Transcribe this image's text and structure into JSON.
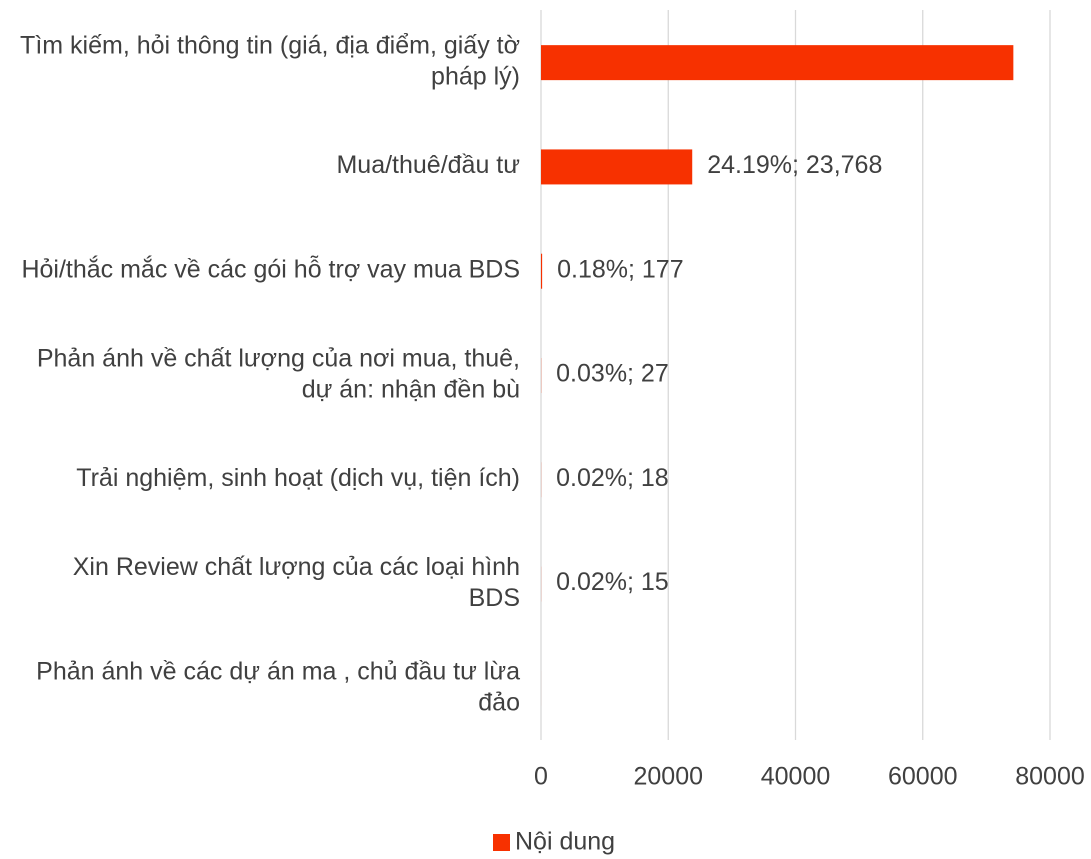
{
  "chart_data": {
    "type": "bar",
    "orientation": "horizontal",
    "categories": [
      "Tìm kiếm, hỏi thông tin (giá, địa điểm, giấy tờ pháp lý)",
      "Mua/thuê/đầu tư",
      "Hỏi/thắc mắc về các gói hỗ trợ vay mua BDS",
      "Phản ánh về chất lượng của nơi mua, thuê, dự án: nhận đền bù",
      "Trải nghiệm, sinh hoạt (dịch vụ, tiện ích)",
      "Xin Review chất lượng của các loại hình BDS",
      "Phản ánh về các dự án ma , chủ đầu tư lừa đảo"
    ],
    "series": [
      {
        "name": "Nội dung",
        "color": "#f73100",
        "values": [
          74240,
          23768,
          177,
          27,
          18,
          15,
          3
        ],
        "value_labels": [
          null,
          "24.19%; 23,768",
          "0.18%; 177",
          "0.03%; 27",
          "0.02%; 18",
          "0.02%; 15",
          null
        ]
      }
    ],
    "xlim": [
      0,
      80000
    ],
    "xticks": [
      0,
      20000,
      40000,
      60000,
      80000
    ],
    "grid": true,
    "legend": "bottom"
  }
}
